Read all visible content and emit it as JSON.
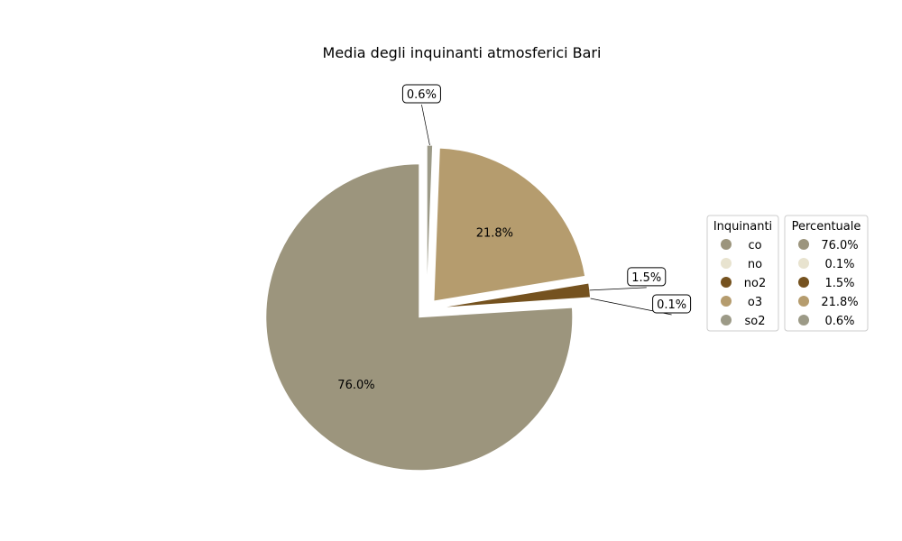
{
  "chart_data": {
    "type": "pie",
    "title": "Media degli inquinanti atmosferici Bari",
    "categories": [
      "co",
      "no",
      "no2",
      "o3",
      "so2"
    ],
    "values": [
      76.0,
      0.1,
      1.5,
      21.8,
      0.6
    ],
    "labels": [
      "76.0%",
      "0.1%",
      "1.5%",
      "21.8%",
      "0.6%"
    ],
    "colors": [
      "#9c957d",
      "#e8e3cf",
      "#75521f",
      "#b59c6e",
      "#9c9a87"
    ],
    "exploded": true,
    "legends": [
      {
        "title": "Inquinanti",
        "entries": [
          "co",
          "no",
          "no2",
          "o3",
          "so2"
        ]
      },
      {
        "title": "Percentuale",
        "entries": [
          "76.0%",
          "0.1%",
          "1.5%",
          "21.8%",
          "0.6%"
        ]
      }
    ],
    "legend_placement": "right"
  }
}
